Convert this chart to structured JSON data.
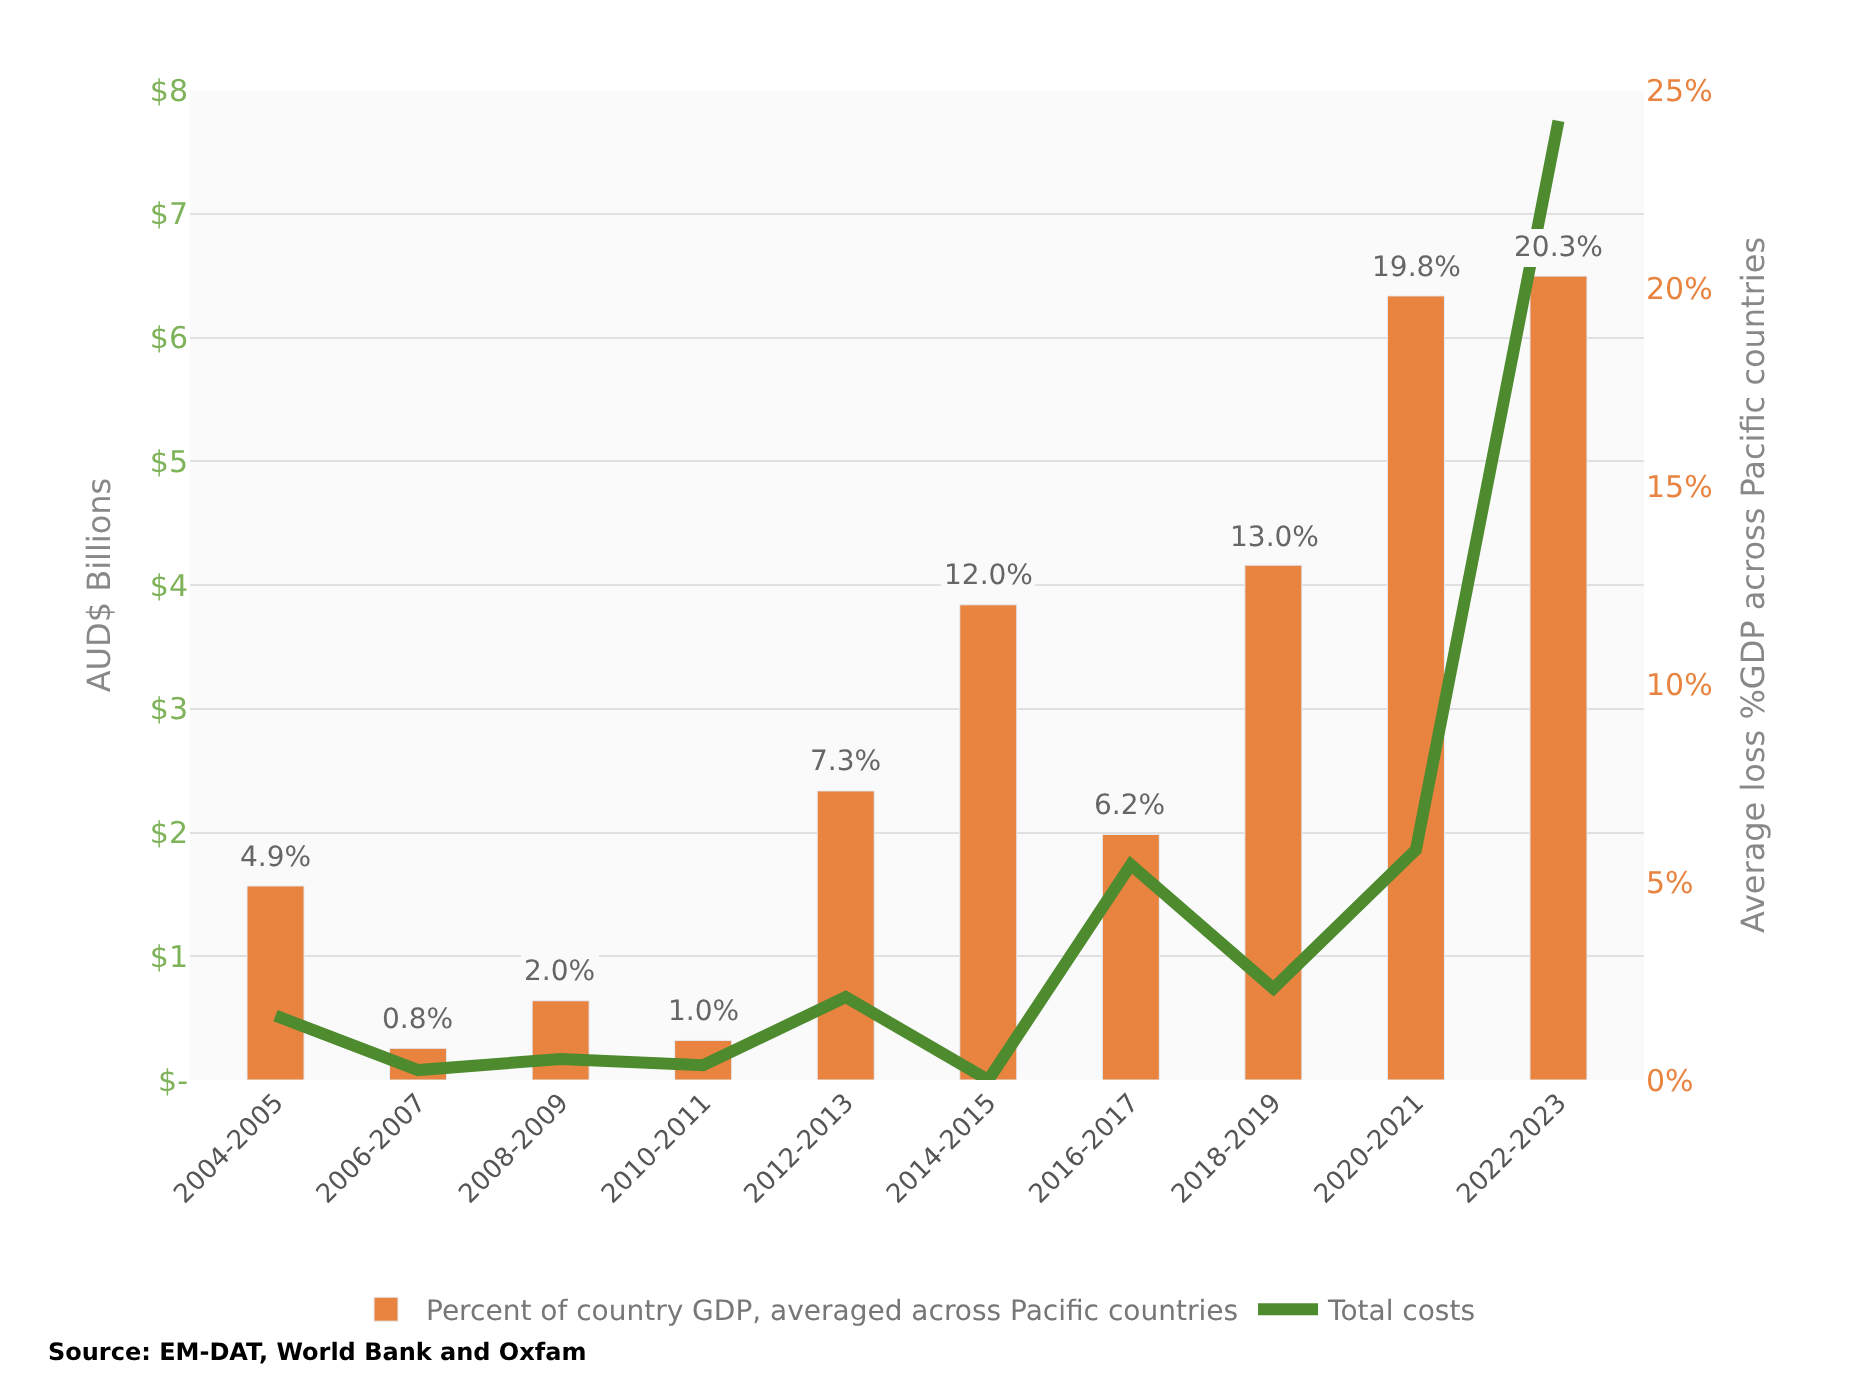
{
  "chart_data": {
    "type": "bar",
    "categories": [
      "2004-2005",
      "2006-2007",
      "2008-2009",
      "2010-2011",
      "2012-2013",
      "2014-2015",
      "2016-2017",
      "2018-2019",
      "2020-2021",
      "2022-2023"
    ],
    "series": [
      {
        "name": "Percent of country GDP, averaged across Pacific countries",
        "type": "bar",
        "axis": "y2",
        "color": "#e8843f",
        "values": [
          4.9,
          0.8,
          2.0,
          1.0,
          7.3,
          12.0,
          6.2,
          13.0,
          19.8,
          20.3
        ],
        "value_labels": [
          "4.9%",
          "0.8%",
          "2.0%",
          "1.0%",
          "7.3%",
          "12.0%",
          "6.2%",
          "13.0%",
          "19.8%",
          "20.3%"
        ]
      },
      {
        "name": "Total costs",
        "type": "line",
        "color": "#4e8a2e",
        "values": [
          0.52,
          0.08,
          0.17,
          0.12,
          0.67,
          0,
          1.74,
          0.74,
          1.86,
          7.75
        ]
      }
    ],
    "ylabel": "AUD$ Billions",
    "y2label": "Average loss %GDP across Pacific countries",
    "ylim": [
      0,
      8
    ],
    "yticks": [
      {
        "value": 0,
        "label": "$-"
      },
      {
        "value": 1,
        "label": "$1"
      },
      {
        "value": 2,
        "label": "$2"
      },
      {
        "value": 3,
        "label": "$3"
      },
      {
        "value": 4,
        "label": "$4"
      },
      {
        "value": 5,
        "label": "$5"
      },
      {
        "value": 6,
        "label": "$6"
      },
      {
        "value": 7,
        "label": "$7"
      },
      {
        "value": 8,
        "label": "$8"
      }
    ],
    "y2lim": [
      0,
      25
    ],
    "y2ticks": [
      {
        "value": 0,
        "label": "0%"
      },
      {
        "value": 5,
        "label": "5%"
      },
      {
        "value": 10,
        "label": "10%"
      },
      {
        "value": 15,
        "label": "15%"
      },
      {
        "value": 20,
        "label": "20%"
      },
      {
        "value": 25,
        "label": "25%"
      }
    ],
    "grid": "y",
    "legend": "bottom",
    "marker": "none",
    "annotations": [
      "Source: EM-DAT, World Bank and Oxfam"
    ]
  }
}
